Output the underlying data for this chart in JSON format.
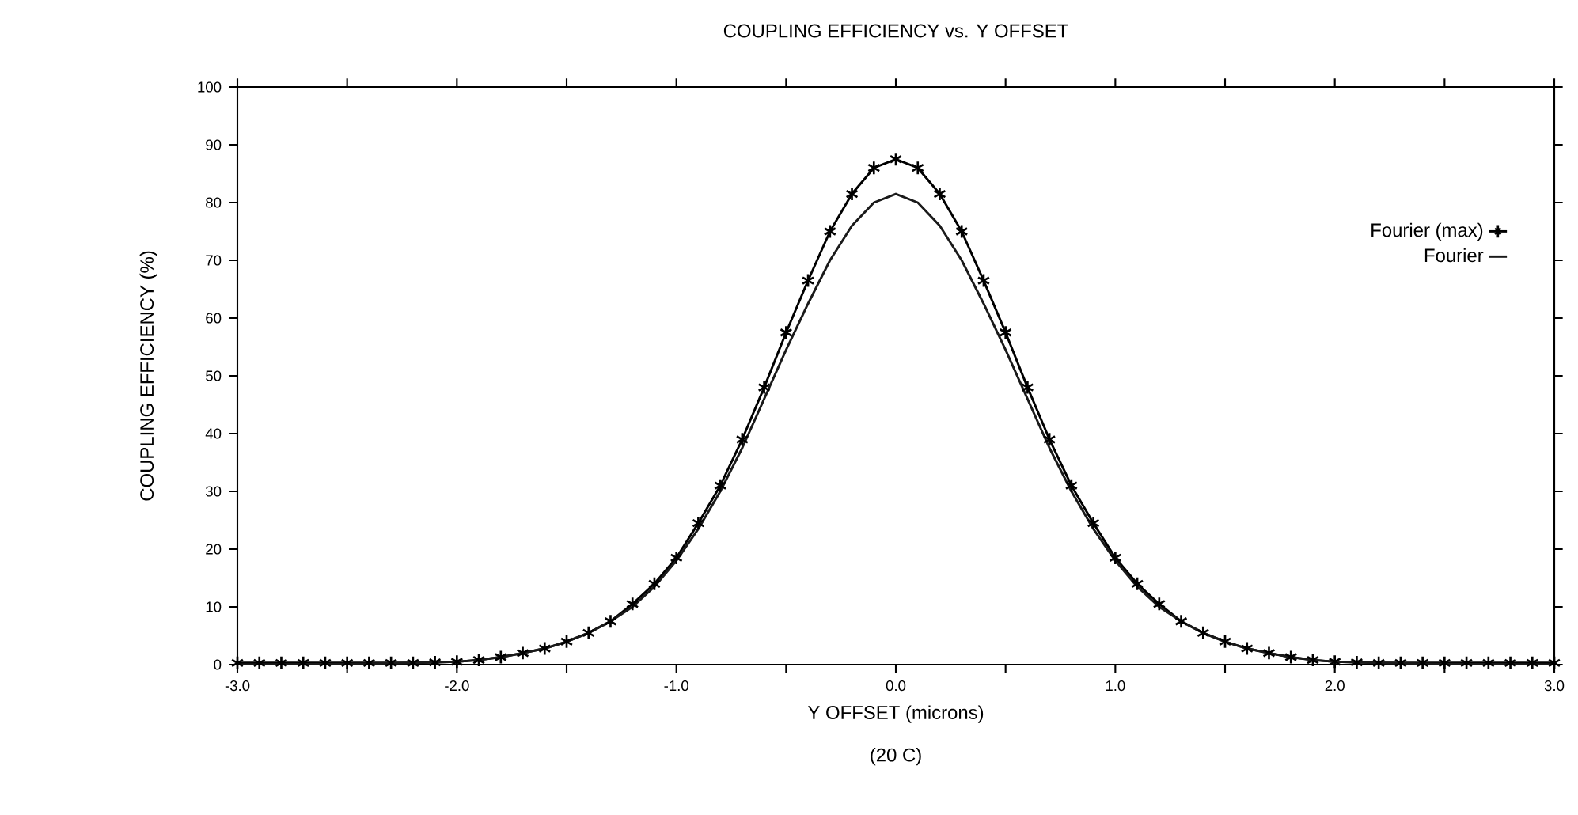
{
  "chart_data": {
    "type": "line",
    "title": "COUPLING EFFICIENCY vs. Y OFFSET",
    "xlabel": "Y OFFSET (microns)",
    "ylabel": "COUPLING EFFICIENCY (%)",
    "annotations": [
      "(20 C)"
    ],
    "xlim": [
      -3,
      3
    ],
    "ylim": [
      0,
      100
    ],
    "xticks": [
      {
        "value": -3,
        "label": "-3.0"
      },
      {
        "value": -2.5,
        "label": null
      },
      {
        "value": -2,
        "label": "-2.0"
      },
      {
        "value": -1.5,
        "label": null
      },
      {
        "value": -1,
        "label": "-1.0"
      },
      {
        "value": -0.5,
        "label": null
      },
      {
        "value": 0,
        "label": "0.0"
      },
      {
        "value": 0.5,
        "label": null
      },
      {
        "value": 1,
        "label": "1.0"
      },
      {
        "value": 1.5,
        "label": null
      },
      {
        "value": 2,
        "label": "2.0"
      },
      {
        "value": 2.5,
        "label": null
      },
      {
        "value": 3,
        "label": "3.0"
      }
    ],
    "yticks": [
      0,
      10,
      20,
      30,
      40,
      50,
      60,
      70,
      80,
      90,
      100
    ],
    "legend": "right",
    "grid": false,
    "series": [
      {
        "name": "Fourier (max)",
        "color": "#000000",
        "marker": "cross",
        "x": [
          -3,
          -2.9,
          -2.8,
          -2.7,
          -2.6,
          -2.5,
          -2.4,
          -2.3,
          -2.2,
          -2.1,
          -2,
          -1.9,
          -1.8,
          -1.7,
          -1.6,
          -1.5,
          -1.4,
          -1.3,
          -1.2,
          -1.1,
          -1,
          -0.9,
          -0.8,
          -0.7,
          -0.6,
          -0.5,
          -0.4,
          -0.3,
          -0.2,
          -0.1,
          0,
          0.1,
          0.2,
          0.3,
          0.4,
          0.5,
          0.6,
          0.7,
          0.8,
          0.9,
          1,
          1.1,
          1.2,
          1.3,
          1.4,
          1.5,
          1.6,
          1.7,
          1.8,
          1.9,
          2,
          2.1,
          2.2,
          2.3,
          2.4,
          2.5,
          2.6,
          2.7,
          2.8,
          2.9,
          3
        ],
        "values": [
          0.3,
          0.3,
          0.3,
          0.3,
          0.3,
          0.3,
          0.3,
          0.3,
          0.3,
          0.4,
          0.5,
          0.8,
          1.3,
          2,
          2.8,
          4,
          5.5,
          7.5,
          10.5,
          14,
          18.5,
          24.5,
          31,
          39,
          48,
          57.5,
          66.5,
          75,
          81.5,
          86,
          87.5,
          86,
          81.5,
          75,
          66.5,
          57.5,
          48,
          39,
          31,
          24.5,
          18.5,
          14,
          10.5,
          7.5,
          5.5,
          4,
          2.8,
          2,
          1.3,
          0.8,
          0.5,
          0.4,
          0.3,
          0.3,
          0.3,
          0.3,
          0.3,
          0.3,
          0.3,
          0.3,
          0.3
        ]
      },
      {
        "name": "Fourier",
        "color": "#1a1a1a",
        "marker": "none",
        "x": [
          -3,
          -2.5,
          -2.2,
          -2,
          -1.9,
          -1.8,
          -1.7,
          -1.6,
          -1.5,
          -1.4,
          -1.3,
          -1.2,
          -1.1,
          -1,
          -0.9,
          -0.8,
          -0.7,
          -0.6,
          -0.5,
          -0.4,
          -0.3,
          -0.2,
          -0.1,
          0,
          0.1,
          0.2,
          0.3,
          0.4,
          0.5,
          0.6,
          0.7,
          0.8,
          0.9,
          1,
          1.1,
          1.2,
          1.3,
          1.4,
          1.5,
          1.6,
          1.7,
          1.8,
          1.9,
          2,
          2.2,
          2.5,
          3
        ],
        "values": [
          0,
          0.1,
          0.3,
          0.5,
          0.8,
          1.3,
          2,
          2.8,
          4,
          5.5,
          7.5,
          10,
          13.5,
          18,
          23.5,
          30,
          37.5,
          46,
          54.5,
          62.5,
          70,
          76,
          80,
          81.5,
          80,
          76,
          70,
          62.5,
          54.5,
          46,
          37.5,
          30,
          23.5,
          18,
          13.5,
          10,
          7.5,
          5.5,
          4,
          2.8,
          2,
          1.3,
          0.8,
          0.5,
          0.3,
          0.1,
          0
        ]
      }
    ]
  }
}
